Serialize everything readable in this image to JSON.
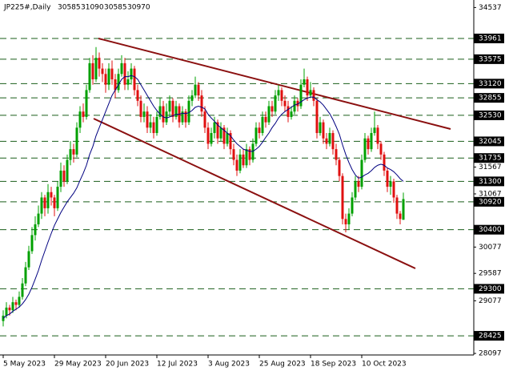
{
  "chart_data": {
    "type": "candlestick",
    "symbol": "JP225#,Daily",
    "up_color": "#00a000",
    "down_color": "#e01010",
    "ylim": [
      28068,
      34677
    ],
    "yticks": [
      34537,
      31567,
      31067,
      30077,
      29587,
      29077,
      28097
    ],
    "levels": {
      "color": "#1a5e1a",
      "values": [
        33961,
        33575,
        33120,
        32855,
        32530,
        32045,
        31735,
        31300,
        30920,
        30400,
        29300,
        28425
      ]
    },
    "categories": [
      "5 May 2023",
      null,
      null,
      null,
      null,
      null,
      null,
      null,
      null,
      null,
      null,
      null,
      null,
      null,
      null,
      null,
      "29 May 2023",
      null,
      null,
      null,
      null,
      null,
      null,
      null,
      null,
      null,
      null,
      null,
      null,
      null,
      null,
      null,
      "20 Jun 2023",
      null,
      null,
      null,
      null,
      null,
      null,
      null,
      null,
      null,
      null,
      null,
      null,
      null,
      null,
      null,
      "12 Jul 2023",
      null,
      null,
      null,
      null,
      null,
      null,
      null,
      null,
      null,
      null,
      null,
      null,
      null,
      null,
      null,
      "3 Aug 2023",
      null,
      null,
      null,
      null,
      null,
      null,
      null,
      null,
      null,
      null,
      null,
      null,
      null,
      null,
      null,
      "25 Aug 2023",
      null,
      null,
      null,
      null,
      null,
      null,
      null,
      null,
      null,
      null,
      null,
      null,
      null,
      null,
      null,
      "18 Sep 2023",
      null,
      null,
      null,
      null,
      null,
      null,
      null,
      null,
      null,
      null,
      null,
      null,
      null,
      null,
      null,
      "10 Oct 2023",
      null,
      null,
      null,
      null,
      null,
      null,
      null,
      null,
      null,
      null,
      null,
      null,
      null
    ],
    "candles": [
      [
        28700,
        28900,
        28600,
        28800
      ],
      [
        28800,
        29050,
        28750,
        28950
      ],
      [
        28950,
        29000,
        28800,
        28900
      ],
      [
        28900,
        29150,
        28850,
        29050
      ],
      [
        29050,
        29100,
        28900,
        29000
      ],
      [
        29000,
        29250,
        28950,
        29150
      ],
      [
        29150,
        29500,
        29100,
        29400
      ],
      [
        29400,
        29800,
        29350,
        29700
      ],
      [
        29700,
        30100,
        29650,
        30000
      ],
      [
        30000,
        30450,
        29950,
        30300
      ],
      [
        30300,
        30650,
        30200,
        30500
      ],
      [
        30500,
        30850,
        30450,
        30700
      ],
      [
        30700,
        31100,
        30600,
        31000
      ],
      [
        31000,
        31050,
        30650,
        30800
      ],
      [
        30800,
        31250,
        30700,
        31100
      ],
      [
        31100,
        31200,
        30850,
        31000
      ],
      [
        31000,
        31050,
        30650,
        30800
      ],
      [
        30800,
        31300,
        30750,
        31200
      ],
      [
        31200,
        31650,
        31100,
        31500
      ],
      [
        31500,
        31600,
        31200,
        31300
      ],
      [
        31300,
        31800,
        31250,
        31700
      ],
      [
        31700,
        32050,
        31600,
        31900
      ],
      [
        31900,
        32000,
        31650,
        31800
      ],
      [
        31800,
        32400,
        31750,
        32300
      ],
      [
        32300,
        32700,
        32200,
        32600
      ],
      [
        32600,
        32750,
        32400,
        32500
      ],
      [
        32500,
        33100,
        32450,
        33000
      ],
      [
        33000,
        33600,
        32950,
        33500
      ],
      [
        33500,
        33650,
        33100,
        33200
      ],
      [
        33200,
        33800,
        33150,
        33600
      ],
      [
        33600,
        33700,
        33250,
        33400
      ],
      [
        33400,
        33500,
        33150,
        33300
      ],
      [
        33300,
        33400,
        32950,
        33100
      ],
      [
        33100,
        33500,
        33000,
        33400
      ],
      [
        33400,
        33550,
        33100,
        33200
      ],
      [
        33200,
        33300,
        32850,
        33000
      ],
      [
        33000,
        33400,
        32950,
        33300
      ],
      [
        33300,
        33650,
        33250,
        33500
      ],
      [
        33500,
        33600,
        33000,
        33100
      ],
      [
        33100,
        33350,
        33000,
        33200
      ],
      [
        33200,
        33500,
        33100,
        33400
      ],
      [
        33400,
        33450,
        32900,
        33000
      ],
      [
        33000,
        33100,
        32700,
        32800
      ],
      [
        32800,
        32900,
        32400,
        32500
      ],
      [
        32500,
        32750,
        32400,
        32600
      ],
      [
        32600,
        32700,
        32200,
        32300
      ],
      [
        32300,
        32550,
        32200,
        32400
      ],
      [
        32400,
        32500,
        32100,
        32200
      ],
      [
        32200,
        32600,
        32150,
        32500
      ],
      [
        32500,
        32850,
        32450,
        32700
      ],
      [
        32700,
        32800,
        32300,
        32400
      ],
      [
        32400,
        32750,
        32350,
        32600
      ],
      [
        32600,
        32900,
        32500,
        32800
      ],
      [
        32800,
        32850,
        32400,
        32500
      ],
      [
        32500,
        32800,
        32450,
        32700
      ],
      [
        32700,
        32750,
        32300,
        32400
      ],
      [
        32400,
        32700,
        32350,
        32600
      ],
      [
        32600,
        32650,
        32300,
        32400
      ],
      [
        32400,
        32900,
        32350,
        32800
      ],
      [
        32800,
        33000,
        32700,
        32900
      ],
      [
        32900,
        33250,
        32850,
        33100
      ],
      [
        33100,
        33150,
        32800,
        32900
      ],
      [
        32900,
        33000,
        32500,
        32600
      ],
      [
        32600,
        32700,
        32200,
        32300
      ],
      [
        32300,
        32400,
        31900,
        32000
      ],
      [
        32000,
        32300,
        31950,
        32200
      ],
      [
        32200,
        32500,
        32100,
        32400
      ],
      [
        32400,
        32450,
        32000,
        32100
      ],
      [
        32100,
        32400,
        32050,
        32300
      ],
      [
        32300,
        32350,
        31900,
        32000
      ],
      [
        32000,
        32300,
        31950,
        32200
      ],
      [
        32200,
        32250,
        31800,
        31900
      ],
      [
        31900,
        32000,
        31600,
        31700
      ],
      [
        31700,
        31800,
        31400,
        31500
      ],
      [
        31500,
        31900,
        31450,
        31800
      ],
      [
        31800,
        31900,
        31550,
        31600
      ],
      [
        31600,
        32000,
        31550,
        31900
      ],
      [
        31900,
        31950,
        31600,
        31700
      ],
      [
        31700,
        32100,
        31650,
        32000
      ],
      [
        32000,
        32400,
        31950,
        32300
      ],
      [
        32300,
        32400,
        32100,
        32200
      ],
      [
        32200,
        32600,
        32150,
        32500
      ],
      [
        32500,
        32600,
        32300,
        32400
      ],
      [
        32400,
        32800,
        32350,
        32700
      ],
      [
        32700,
        32800,
        32500,
        32600
      ],
      [
        32600,
        33000,
        32550,
        32900
      ],
      [
        32900,
        33100,
        32800,
        33000
      ],
      [
        33000,
        33050,
        32700,
        32800
      ],
      [
        32800,
        32900,
        32600,
        32700
      ],
      [
        32700,
        32800,
        32400,
        32500
      ],
      [
        32500,
        32700,
        32450,
        32600
      ],
      [
        32600,
        32900,
        32550,
        32800
      ],
      [
        32800,
        32850,
        32600,
        32700
      ],
      [
        32700,
        33200,
        32650,
        33100
      ],
      [
        33100,
        33400,
        33050,
        33200
      ],
      [
        33200,
        33250,
        32800,
        32900
      ],
      [
        32900,
        33150,
        32850,
        33000
      ],
      [
        33000,
        33050,
        32700,
        32800
      ],
      [
        32800,
        32850,
        32100,
        32200
      ],
      [
        32200,
        32500,
        32150,
        32400
      ],
      [
        32400,
        32450,
        32000,
        32100
      ],
      [
        32100,
        32200,
        31900,
        32000
      ],
      [
        32000,
        32300,
        31950,
        32200
      ],
      [
        32200,
        32250,
        31800,
        31900
      ],
      [
        31900,
        32000,
        31600,
        31700
      ],
      [
        31700,
        31750,
        31300,
        31400
      ],
      [
        31400,
        31450,
        30500,
        30600
      ],
      [
        30600,
        30700,
        30350,
        30500
      ],
      [
        30500,
        30800,
        30400,
        30700
      ],
      [
        30700,
        31100,
        30650,
        31000
      ],
      [
        31000,
        31400,
        30950,
        31300
      ],
      [
        31300,
        31400,
        31100,
        31200
      ],
      [
        31200,
        31800,
        31150,
        31700
      ],
      [
        31700,
        32200,
        31650,
        32100
      ],
      [
        32100,
        32150,
        31800,
        31900
      ],
      [
        31900,
        32300,
        31850,
        32200
      ],
      [
        32200,
        32600,
        32150,
        32300
      ],
      [
        32300,
        32350,
        31900,
        32000
      ],
      [
        32000,
        32050,
        31700,
        31800
      ],
      [
        31800,
        31850,
        31400,
        31500
      ],
      [
        31500,
        31550,
        31100,
        31200
      ],
      [
        31200,
        31400,
        31050,
        31300
      ],
      [
        31300,
        31350,
        30900,
        31000
      ],
      [
        31000,
        31050,
        30600,
        30700
      ],
      [
        30700,
        30750,
        30500,
        30600
      ],
      [
        30585,
        31090,
        30585,
        30970
      ]
    ],
    "ma": {
      "color": "#000080",
      "values": [
        28750,
        28800,
        28830,
        28880,
        28920,
        28960,
        29020,
        29100,
        29200,
        29330,
        29480,
        29640,
        29830,
        30000,
        30170,
        30330,
        30480,
        30600,
        30720,
        30820,
        30920,
        31000,
        31080,
        31180,
        31320,
        31450,
        31600,
        31800,
        31950,
        32150,
        32300,
        32450,
        32600,
        32750,
        32900,
        33000,
        33100,
        33200,
        33250,
        33250,
        33270,
        33250,
        33200,
        33100,
        33000,
        32900,
        32800,
        32700,
        32620,
        32550,
        32500,
        32480,
        32500,
        32520,
        32550,
        32550,
        32570,
        32560,
        32580,
        32620,
        32680,
        32700,
        32680,
        32650,
        32550,
        32480,
        32420,
        32350,
        32300,
        32250,
        32200,
        32150,
        32070,
        32000,
        31950,
        31900,
        31880,
        31860,
        31860,
        31900,
        31950,
        32030,
        32120,
        32200,
        32300,
        32380,
        32480,
        32550,
        32600,
        32640,
        32680,
        32720,
        32740,
        32780,
        32820,
        32850,
        32870,
        32870,
        32820,
        32780,
        32720,
        32640,
        32560,
        32450,
        32320,
        32180,
        31980,
        31800,
        31650,
        31520,
        31420,
        31360,
        31380,
        31420,
        31450,
        31500,
        31560,
        31600,
        31620,
        31600,
        31550,
        31520,
        31480,
        31420,
        31350,
        31300
      ]
    }
  }
}
